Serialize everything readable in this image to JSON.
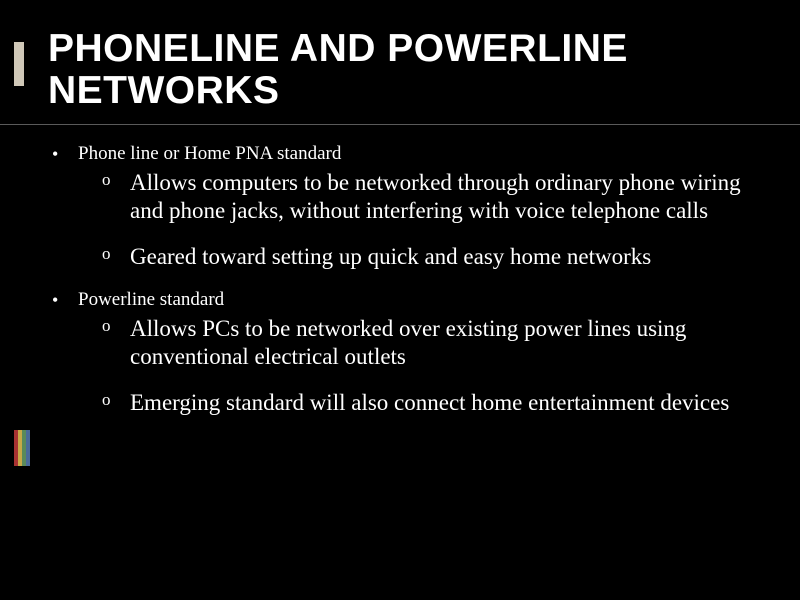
{
  "title": "PHONELINE AND POWERLINE NETWORKS",
  "hr_color": "#5a5a5a",
  "left_accent_color": "#d0c8b8",
  "stripes": [
    "#a83232",
    "#c8a848",
    "#5a8a5a",
    "#4a6a9a"
  ],
  "background_color": "#000000",
  "text_color": "#ffffff",
  "title_fontsize": 39,
  "body_fontsize": 19,
  "sub_fontsize": 23,
  "bullets": [
    {
      "marker": "•",
      "text": "Phone line or Home PNA standard",
      "subs": [
        {
          "marker": "o",
          "text": "Allows computers to be networked through ordinary phone wiring and phone jacks, without interfering with voice telephone calls"
        },
        {
          "marker": "o",
          "text": "Geared toward setting up quick and easy home networks"
        }
      ]
    },
    {
      "marker": "•",
      "text": "Powerline standard",
      "subs": [
        {
          "marker": "o",
          "text": "Allows PCs to be networked over existing power lines using conventional electrical outlets"
        },
        {
          "marker": "o",
          "text": "Emerging standard will also connect home entertainment devices"
        }
      ]
    }
  ]
}
